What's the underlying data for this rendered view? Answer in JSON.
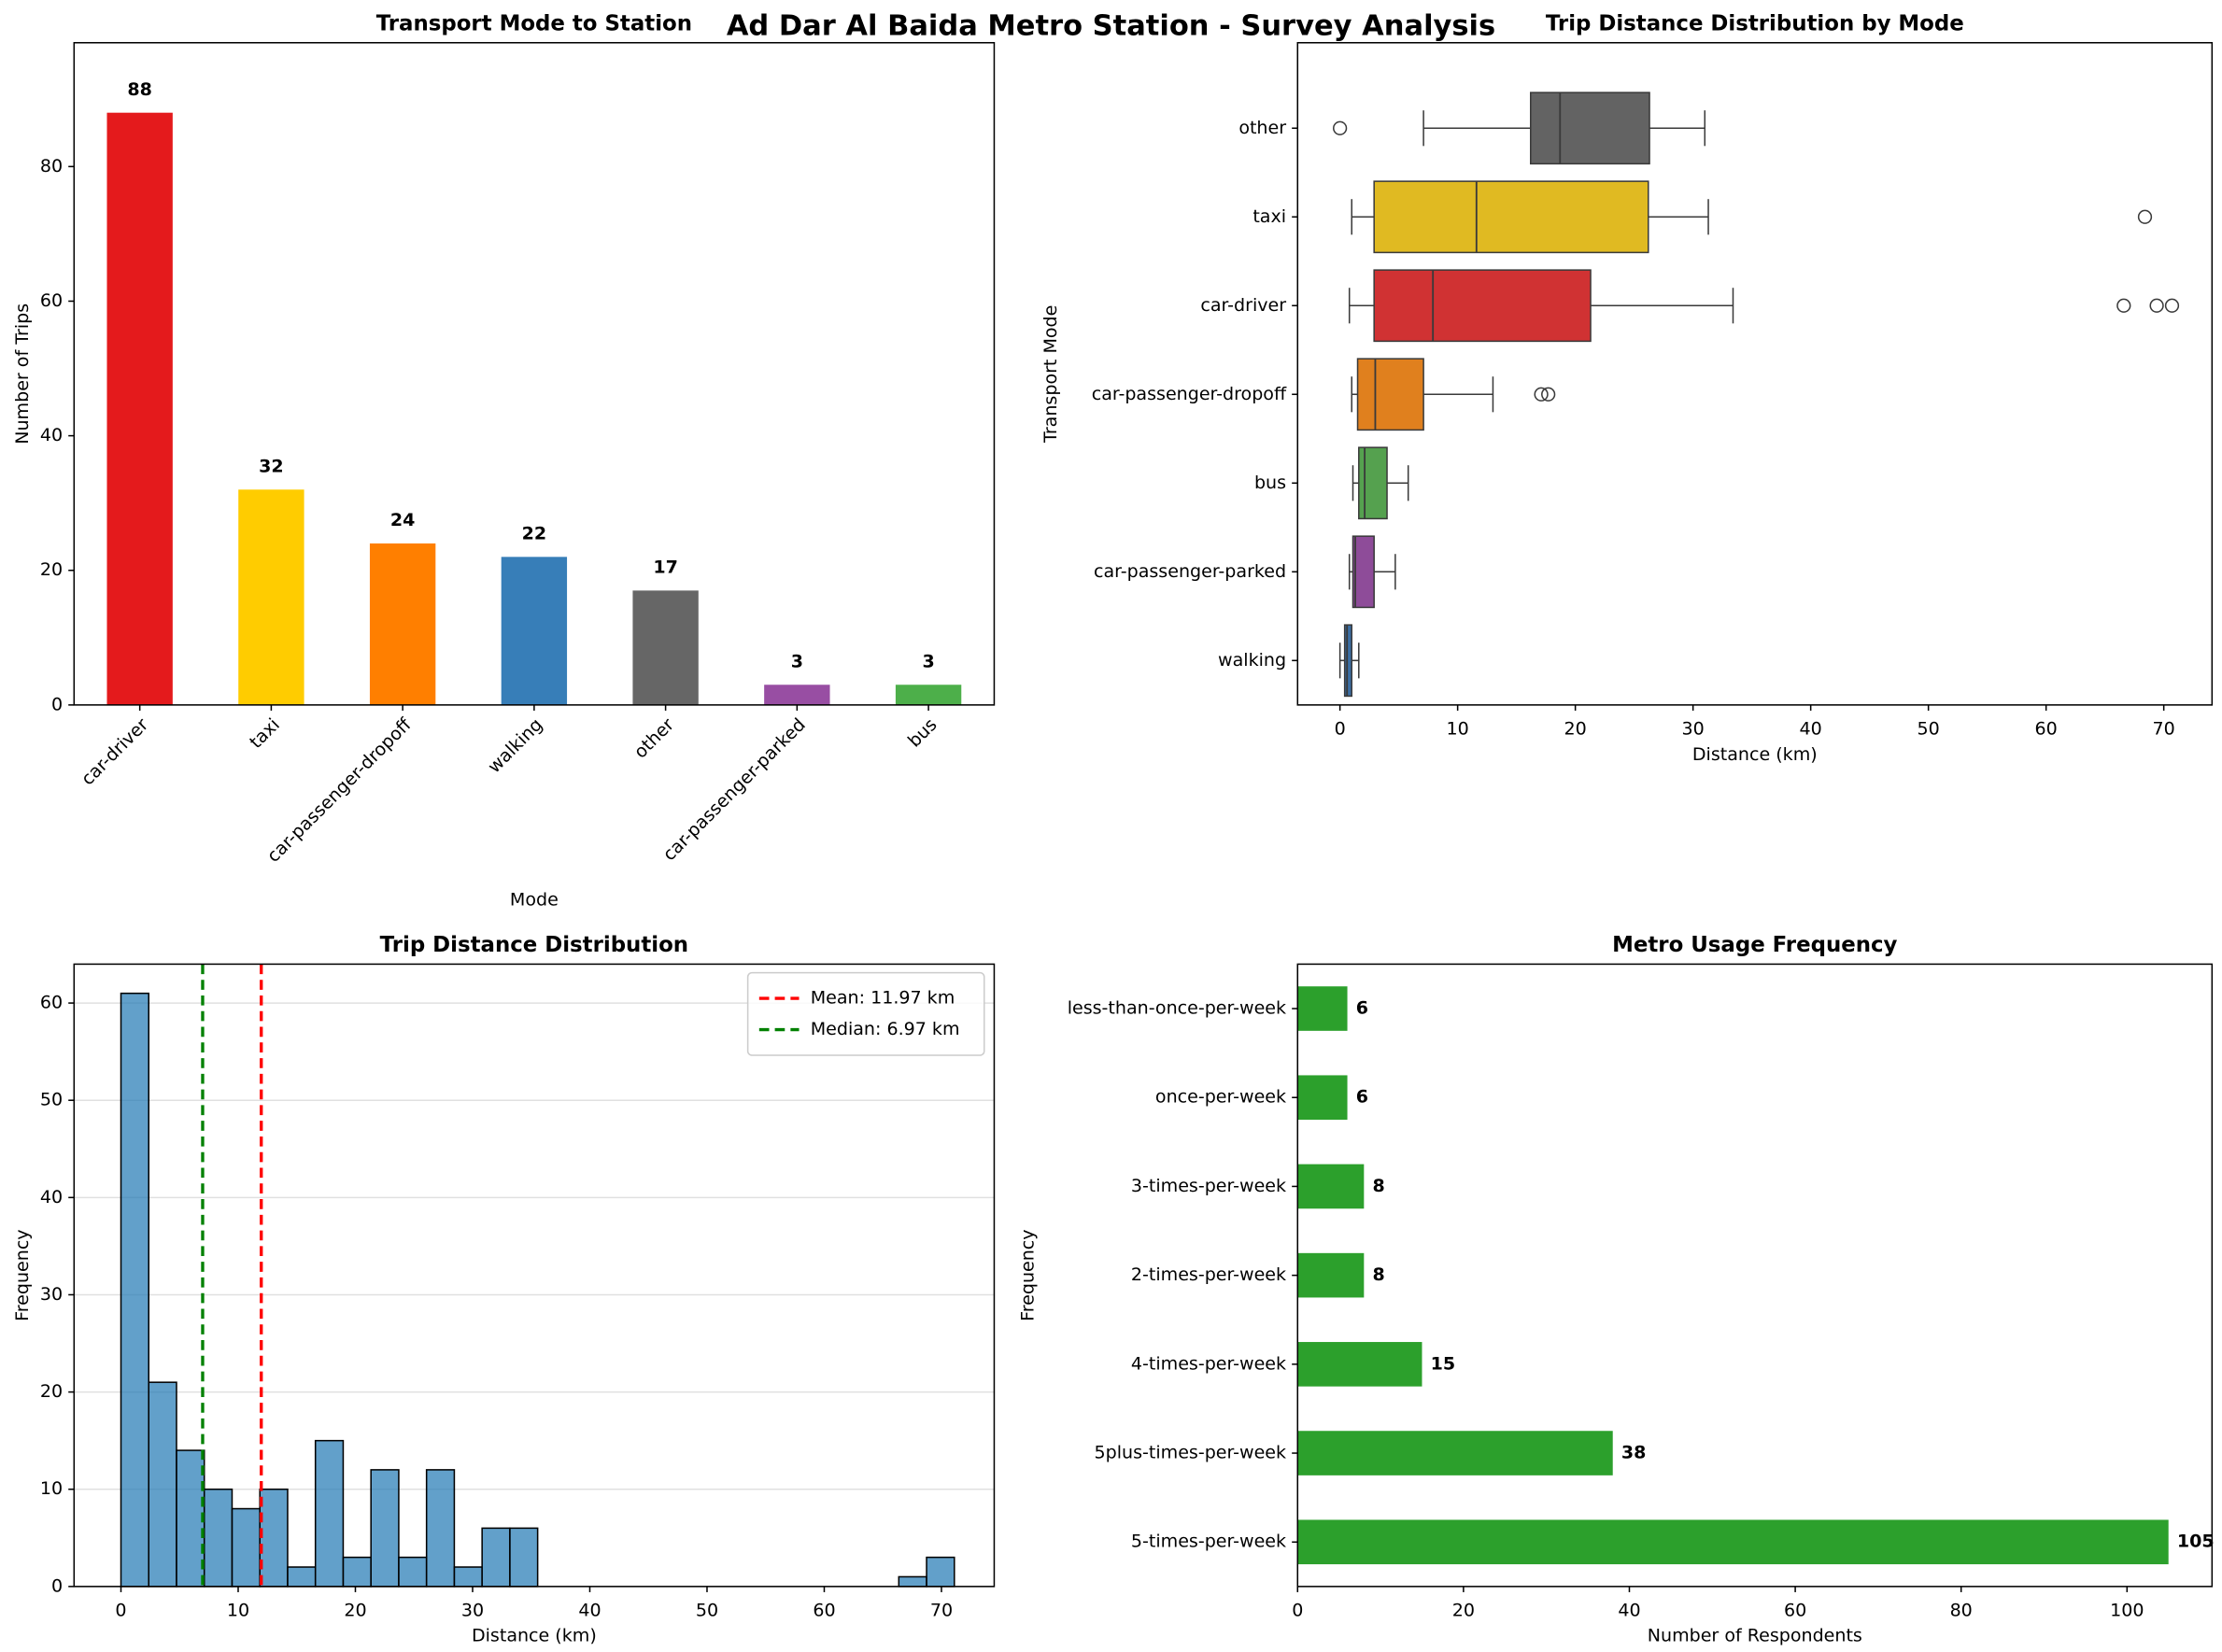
{
  "title": "Ad Dar Al Baida Metro Station - Survey Analysis",
  "chart_data": [
    {
      "type": "bar",
      "title": "Transport Mode to Station",
      "x_label": "Mode",
      "y_label": "Number of Trips",
      "categories": [
        "car-driver",
        "taxi",
        "car-passenger-dropoff",
        "walking",
        "other",
        "car-passenger-parked",
        "bus"
      ],
      "values": [
        88,
        32,
        24,
        22,
        17,
        3,
        3
      ],
      "colors": [
        "#e41a1c",
        "#ffcc00",
        "#ff7f00",
        "#377eb8",
        "#666666",
        "#984ea3",
        "#4daf4a"
      ],
      "ylim": [
        0,
        98.4
      ],
      "yticks": [
        0,
        20,
        40,
        60,
        80
      ]
    },
    {
      "type": "box",
      "title": "Trip Distance Distribution by Mode",
      "x_label": "Distance (km)",
      "y_label": "Transport Mode",
      "categories": [
        "other",
        "taxi",
        "car-driver",
        "car-passenger-dropoff",
        "bus",
        "car-passenger-parked",
        "walking"
      ],
      "boxes": [
        {
          "whislo": 7.1,
          "q1": 16.2,
          "med": 18.7,
          "q3": 26.3,
          "whishi": 31.0,
          "fliers": [
            0.0
          ],
          "color": "#636363"
        },
        {
          "whislo": 1.0,
          "q1": 2.9,
          "med": 11.6,
          "q3": 26.2,
          "whishi": 31.3,
          "fliers": [
            68.4
          ],
          "color": "#e0ba22"
        },
        {
          "whislo": 0.8,
          "q1": 2.9,
          "med": 7.9,
          "q3": 21.3,
          "whishi": 33.4,
          "fliers": [
            66.6,
            69.4,
            70.7
          ],
          "color": "#d03233"
        },
        {
          "whislo": 1.0,
          "q1": 1.5,
          "med": 3.0,
          "q3": 7.1,
          "whishi": 13.0,
          "fliers": [
            17.1,
            17.7
          ],
          "color": "#e0801e"
        },
        {
          "whislo": 1.1,
          "q1": 1.6,
          "med": 2.1,
          "q3": 4.0,
          "whishi": 5.8,
          "fliers": [],
          "color": "#55a14f"
        },
        {
          "whislo": 0.8,
          "q1": 1.1,
          "med": 1.3,
          "q3": 2.9,
          "whishi": 4.7,
          "fliers": [],
          "color": "#8e4c99"
        },
        {
          "whislo": 0.0,
          "q1": 0.4,
          "med": 0.6,
          "q3": 1.0,
          "whishi": 1.6,
          "fliers": [],
          "color": "#3b6ea3"
        }
      ],
      "xlim": [
        -3.6,
        74.1
      ],
      "xticks": [
        0,
        10,
        20,
        30,
        40,
        50,
        60,
        70
      ]
    },
    {
      "type": "histogram",
      "title": "Trip Distance Distribution",
      "x_label": "Distance (km)",
      "y_label": "Frequency",
      "bins": [
        0,
        2.37,
        4.74,
        7.11,
        9.48,
        11.85,
        14.22,
        16.59,
        18.96,
        21.33,
        23.7,
        26.07,
        28.44,
        30.81,
        33.18,
        35.55,
        37.92,
        40.29,
        42.66,
        45.03,
        47.4,
        49.77,
        52.14,
        54.51,
        56.88,
        59.25,
        61.62,
        63.99,
        66.36,
        68.73,
        71.1
      ],
      "counts": [
        61,
        21,
        14,
        10,
        8,
        10,
        2,
        15,
        3,
        12,
        3,
        12,
        2,
        6,
        6,
        0,
        0,
        0,
        0,
        0,
        0,
        0,
        0,
        0,
        0,
        0,
        0,
        0,
        1,
        3
      ],
      "color": "#1f77b4",
      "grid": true,
      "legend": "upper right",
      "lines": [
        {
          "name": "Mean: 11.97 km",
          "value": 11.97,
          "color": "#ff0000"
        },
        {
          "name": "Median: 6.97 km",
          "value": 6.97,
          "color": "#008000"
        }
      ],
      "xlim": [
        -4.0,
        74.5
      ],
      "xticks": [
        0,
        10,
        20,
        30,
        40,
        50,
        60,
        70
      ],
      "ylim": [
        0,
        64
      ],
      "yticks": [
        0,
        10,
        20,
        30,
        40,
        50,
        60
      ]
    },
    {
      "type": "barh",
      "title": "Metro Usage Frequency",
      "x_label": "Number of Respondents",
      "y_label": "Frequency",
      "categories": [
        "5-times-per-week",
        "5plus-times-per-week",
        "4-times-per-week",
        "2-times-per-week",
        "3-times-per-week",
        "once-per-week",
        "less-than-once-per-week"
      ],
      "values": [
        105,
        38,
        15,
        8,
        8,
        6,
        6
      ],
      "color": "#2ca02c",
      "xlim": [
        0,
        110.25
      ],
      "xticks": [
        0,
        20,
        40,
        60,
        80,
        100
      ]
    }
  ]
}
